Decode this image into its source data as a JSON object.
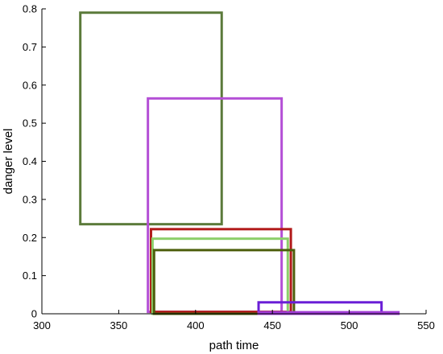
{
  "chart_data": {
    "type": "box-range",
    "title": "",
    "xlabel": "path time",
    "ylabel": "danger level",
    "xlim": [
      300,
      550
    ],
    "ylim": [
      0,
      0.8
    ],
    "xticks": [
      300,
      350,
      400,
      450,
      500,
      550
    ],
    "yticks": [
      0,
      0.1,
      0.2,
      0.3,
      0.4,
      0.5,
      0.6,
      0.7,
      0.8
    ],
    "xtick_labels": [
      "300",
      "350",
      "400",
      "450",
      "500",
      "550"
    ],
    "ytick_labels": [
      "0",
      "0.1",
      "0.2",
      "0.3",
      "0.4",
      "0.5",
      "0.6",
      "0.7",
      "0.8"
    ],
    "grid": false,
    "series": [
      {
        "x0": 325,
        "x1": 417,
        "y0": 0.235,
        "y1": 0.79,
        "color": "#5b7a3a"
      },
      {
        "x0": 369,
        "x1": 456,
        "y0": 0.005,
        "y1": 0.565,
        "color": "#b44fd6"
      },
      {
        "x0": 371,
        "x1": 462,
        "y0": 0.005,
        "y1": 0.222,
        "color": "#b21a1a"
      },
      {
        "x0": 372,
        "x1": 460,
        "y0": 0.0,
        "y1": 0.197,
        "color": "#8ccf6a"
      },
      {
        "x0": 373,
        "x1": 464,
        "y0": 0.0,
        "y1": 0.167,
        "color": "#4d5e0c"
      },
      {
        "x0": 441,
        "x1": 521,
        "y0": 0.0,
        "y1": 0.03,
        "color": "#6a1ed6"
      },
      {
        "x0": 441,
        "x1": 532,
        "y0": 0.0,
        "y1": 0.004,
        "color": "#a03cd6"
      }
    ]
  }
}
